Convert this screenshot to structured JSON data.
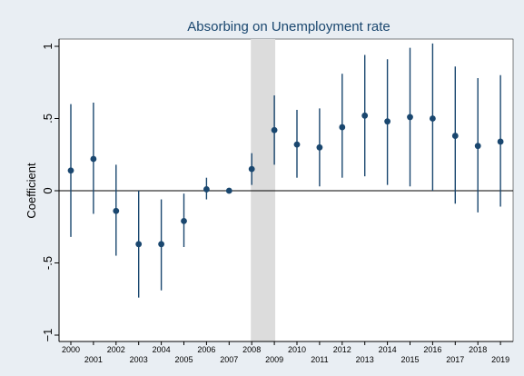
{
  "chart_data": {
    "type": "scatter",
    "title": "Absorbing on Unemployment rate",
    "xlabel": "",
    "ylabel": "Coefficient",
    "ylim": [
      -1.1,
      1.1
    ],
    "yticks": [
      {
        "value": 1,
        "label": "1"
      },
      {
        "value": 0.5,
        "label": ".5"
      },
      {
        "value": 0,
        "label": "0"
      },
      {
        "value": -0.5,
        "label": "-.5"
      },
      {
        "value": -1,
        "label": "−1"
      }
    ],
    "x": [
      "2000",
      "2001",
      "2002",
      "2003",
      "2004",
      "2005",
      "2006",
      "2007",
      "2008",
      "2009",
      "2010",
      "2011",
      "2012",
      "2013",
      "2014",
      "2015",
      "2016",
      "2017",
      "2018",
      "2019"
    ],
    "series": [
      {
        "values": [
          0.14,
          0.22,
          -0.14,
          -0.37,
          -0.37,
          -0.21,
          0.01,
          0.0,
          0.15,
          0.42,
          0.32,
          0.3,
          0.44,
          0.52,
          0.48,
          0.51,
          0.5,
          0.38,
          0.31,
          0.34
        ],
        "lower": [
          -0.32,
          -0.16,
          -0.45,
          -0.74,
          -0.69,
          -0.39,
          -0.06,
          0.0,
          0.04,
          0.18,
          0.09,
          0.03,
          0.09,
          0.1,
          0.04,
          0.03,
          0.0,
          -0.09,
          -0.15,
          -0.11
        ],
        "upper": [
          0.6,
          0.61,
          0.18,
          0.0,
          -0.06,
          -0.02,
          0.09,
          0.0,
          0.26,
          0.66,
          0.56,
          0.57,
          0.81,
          0.94,
          0.91,
          0.99,
          1.02,
          0.86,
          0.78,
          0.8
        ]
      }
    ],
    "shaded_region": {
      "from": "2008",
      "to": "2009",
      "color": "#dcdcdc"
    },
    "reference_line": 0,
    "grid": false,
    "colors": {
      "marker": "#1a476f",
      "background": "#e9eef3",
      "plot": "#ffffff",
      "title": "#1a476f"
    }
  }
}
